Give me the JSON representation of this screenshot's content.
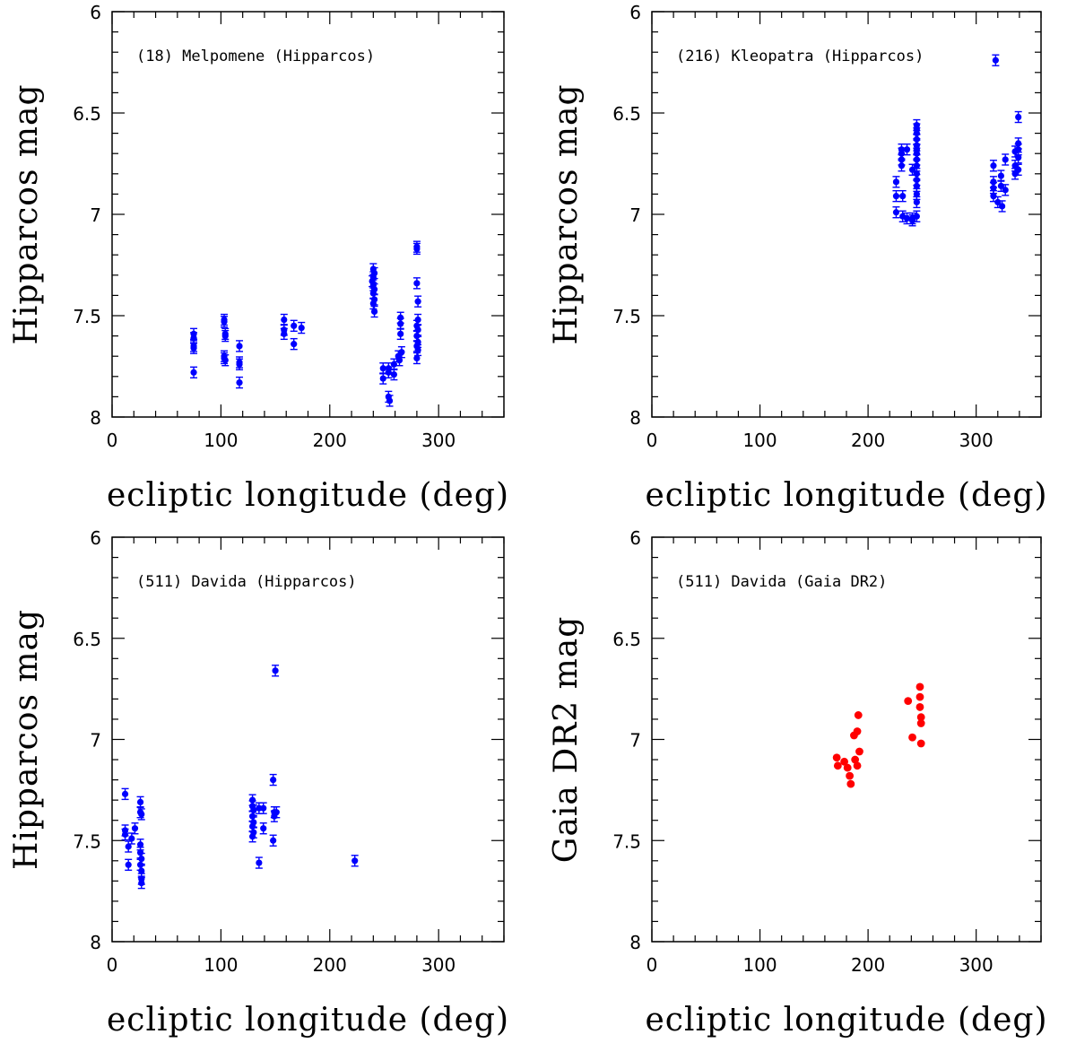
{
  "chart_data": [
    {
      "type": "scatter",
      "title": "(18) Melpomene (Hipparcos)",
      "xlabel": "ecliptic longitude (deg)",
      "ylabel": "Hipparcos mag",
      "xlim": [
        0,
        360
      ],
      "ylim": [
        6,
        8
      ],
      "y_inverted": true,
      "x_ticks": [
        0,
        100,
        200,
        300
      ],
      "y_ticks": [
        6,
        6.5,
        7,
        7.5,
        8
      ],
      "x_tick_labels": [
        "0",
        "100",
        "200",
        "300"
      ],
      "y_tick_labels": [
        "6",
        "6.5",
        "7",
        "7.5",
        "8"
      ],
      "color": "#0000ff",
      "error_bars": true,
      "points": [
        [
          75,
          7.59
        ],
        [
          75,
          7.61
        ],
        [
          75,
          7.65
        ],
        [
          75,
          7.66
        ],
        [
          75,
          7.78
        ],
        [
          103,
          7.52
        ],
        [
          103,
          7.53
        ],
        [
          104,
          7.59
        ],
        [
          104,
          7.6
        ],
        [
          103,
          7.7
        ],
        [
          103,
          7.71
        ],
        [
          104,
          7.72
        ],
        [
          117,
          7.65
        ],
        [
          117,
          7.73
        ],
        [
          117,
          7.74
        ],
        [
          117,
          7.83
        ],
        [
          158,
          7.52
        ],
        [
          158,
          7.57
        ],
        [
          158,
          7.59
        ],
        [
          167,
          7.55
        ],
        [
          167,
          7.64
        ],
        [
          174,
          7.56
        ],
        [
          240,
          7.27
        ],
        [
          241,
          7.29
        ],
        [
          240,
          7.31
        ],
        [
          239,
          7.33
        ],
        [
          240,
          7.35
        ],
        [
          241,
          7.37
        ],
        [
          240,
          7.39
        ],
        [
          241,
          7.42
        ],
        [
          240,
          7.44
        ],
        [
          241,
          7.48
        ],
        [
          249,
          7.76
        ],
        [
          249,
          7.81
        ],
        [
          254,
          7.76
        ],
        [
          254,
          7.78
        ],
        [
          254,
          7.9
        ],
        [
          255,
          7.92
        ],
        [
          259,
          7.74
        ],
        [
          259,
          7.79
        ],
        [
          263,
          7.7
        ],
        [
          264,
          7.72
        ],
        [
          265,
          7.51
        ],
        [
          265,
          7.54
        ],
        [
          265,
          7.59
        ],
        [
          266,
          7.68
        ],
        [
          280,
          7.16
        ],
        [
          280,
          7.17
        ],
        [
          280,
          7.34
        ],
        [
          281,
          7.43
        ],
        [
          281,
          7.52
        ],
        [
          280,
          7.55
        ],
        [
          281,
          7.57
        ],
        [
          280,
          7.6
        ],
        [
          281,
          7.63
        ],
        [
          280,
          7.65
        ],
        [
          281,
          7.67
        ],
        [
          280,
          7.71
        ]
      ]
    },
    {
      "type": "scatter",
      "title": "(216) Kleopatra (Hipparcos)",
      "xlabel": "ecliptic longitude (deg)",
      "ylabel": "Hipparcos mag",
      "xlim": [
        0,
        360
      ],
      "ylim": [
        6,
        8
      ],
      "y_inverted": true,
      "x_ticks": [
        0,
        100,
        200,
        300
      ],
      "y_ticks": [
        6,
        6.5,
        7,
        7.5,
        8
      ],
      "x_tick_labels": [
        "0",
        "100",
        "200",
        "300"
      ],
      "y_tick_labels": [
        "6",
        "6.5",
        "7",
        "7.5",
        "8"
      ],
      "color": "#0000ff",
      "error_bars": true,
      "points": [
        [
          226,
          6.84
        ],
        [
          226,
          6.91
        ],
        [
          226,
          6.99
        ],
        [
          231,
          6.68
        ],
        [
          231,
          6.7
        ],
        [
          231,
          6.73
        ],
        [
          231,
          6.76
        ],
        [
          232,
          6.91
        ],
        [
          232,
          7.01
        ],
        [
          236,
          6.68
        ],
        [
          236,
          7.02
        ],
        [
          241,
          6.78
        ],
        [
          241,
          7.02
        ],
        [
          241,
          7.03
        ],
        [
          245,
          6.56
        ],
        [
          245,
          6.58
        ],
        [
          245,
          6.6
        ],
        [
          245,
          6.63
        ],
        [
          245,
          6.66
        ],
        [
          245,
          6.68
        ],
        [
          245,
          6.7
        ],
        [
          245,
          6.73
        ],
        [
          245,
          6.76
        ],
        [
          245,
          6.8
        ],
        [
          245,
          6.83
        ],
        [
          245,
          6.86
        ],
        [
          245,
          6.9
        ],
        [
          245,
          6.94
        ],
        [
          245,
          7.01
        ],
        [
          316,
          6.76
        ],
        [
          316,
          6.84
        ],
        [
          316,
          6.87
        ],
        [
          316,
          6.91
        ],
        [
          318,
          6.24
        ],
        [
          320,
          6.94
        ],
        [
          323,
          6.81
        ],
        [
          323,
          6.86
        ],
        [
          324,
          6.96
        ],
        [
          327,
          6.73
        ],
        [
          327,
          6.88
        ],
        [
          336,
          6.69
        ],
        [
          336,
          6.76
        ],
        [
          336,
          6.8
        ],
        [
          339,
          6.52
        ],
        [
          339,
          6.65
        ],
        [
          339,
          6.68
        ],
        [
          339,
          6.72
        ],
        [
          339,
          6.78
        ]
      ]
    },
    {
      "type": "scatter",
      "title": "(511) Davida (Hipparcos)",
      "xlabel": "ecliptic longitude (deg)",
      "ylabel": "Hipparcos mag",
      "xlim": [
        0,
        360
      ],
      "ylim": [
        6,
        8
      ],
      "y_inverted": true,
      "x_ticks": [
        0,
        100,
        200,
        300
      ],
      "y_ticks": [
        6,
        6.5,
        7,
        7.5,
        8
      ],
      "x_tick_labels": [
        "0",
        "100",
        "200",
        "300"
      ],
      "y_tick_labels": [
        "6",
        "6.5",
        "7",
        "7.5",
        "8"
      ],
      "color": "#0000ff",
      "error_bars": true,
      "points": [
        [
          12,
          7.27
        ],
        [
          12,
          7.45
        ],
        [
          12,
          7.47
        ],
        [
          15,
          7.53
        ],
        [
          15,
          7.62
        ],
        [
          18,
          7.49
        ],
        [
          21,
          7.44
        ],
        [
          26,
          7.31
        ],
        [
          26,
          7.36
        ],
        [
          27,
          7.37
        ],
        [
          26,
          7.52
        ],
        [
          26,
          7.56
        ],
        [
          27,
          7.59
        ],
        [
          26,
          7.62
        ],
        [
          27,
          7.65
        ],
        [
          27,
          7.69
        ],
        [
          27,
          7.71
        ],
        [
          129,
          7.3
        ],
        [
          129,
          7.33
        ],
        [
          130,
          7.35
        ],
        [
          129,
          7.38
        ],
        [
          130,
          7.41
        ],
        [
          129,
          7.43
        ],
        [
          130,
          7.46
        ],
        [
          129,
          7.48
        ],
        [
          135,
          7.34
        ],
        [
          135,
          7.61
        ],
        [
          139,
          7.34
        ],
        [
          139,
          7.44
        ],
        [
          148,
          7.2
        ],
        [
          149,
          7.36
        ],
        [
          149,
          7.38
        ],
        [
          148,
          7.5
        ],
        [
          150,
          6.66
        ],
        [
          151,
          7.36
        ],
        [
          223,
          7.6
        ]
      ]
    },
    {
      "type": "scatter",
      "title": "(511) Davida (Gaia DR2)",
      "xlabel": "ecliptic longitude (deg)",
      "ylabel": "Gaia DR2 mag",
      "xlim": [
        0,
        360
      ],
      "ylim": [
        6,
        8
      ],
      "y_inverted": true,
      "x_ticks": [
        0,
        100,
        200,
        300
      ],
      "y_ticks": [
        6,
        6.5,
        7,
        7.5,
        8
      ],
      "x_tick_labels": [
        "0",
        "100",
        "200",
        "300"
      ],
      "y_tick_labels": [
        "6",
        "6.5",
        "7",
        "7.5",
        "8"
      ],
      "color": "#ff0000",
      "error_bars": false,
      "points": [
        [
          171,
          7.09
        ],
        [
          172,
          7.13
        ],
        [
          178,
          7.11
        ],
        [
          181,
          7.14
        ],
        [
          183,
          7.18
        ],
        [
          184,
          7.22
        ],
        [
          187,
          6.98
        ],
        [
          188,
          7.1
        ],
        [
          190,
          6.96
        ],
        [
          190,
          7.13
        ],
        [
          191,
          6.88
        ],
        [
          192,
          7.06
        ],
        [
          237,
          6.81
        ],
        [
          241,
          6.99
        ],
        [
          248,
          6.74
        ],
        [
          248,
          6.79
        ],
        [
          248,
          6.84
        ],
        [
          249,
          6.89
        ],
        [
          249,
          6.92
        ],
        [
          249,
          7.02
        ]
      ]
    }
  ]
}
